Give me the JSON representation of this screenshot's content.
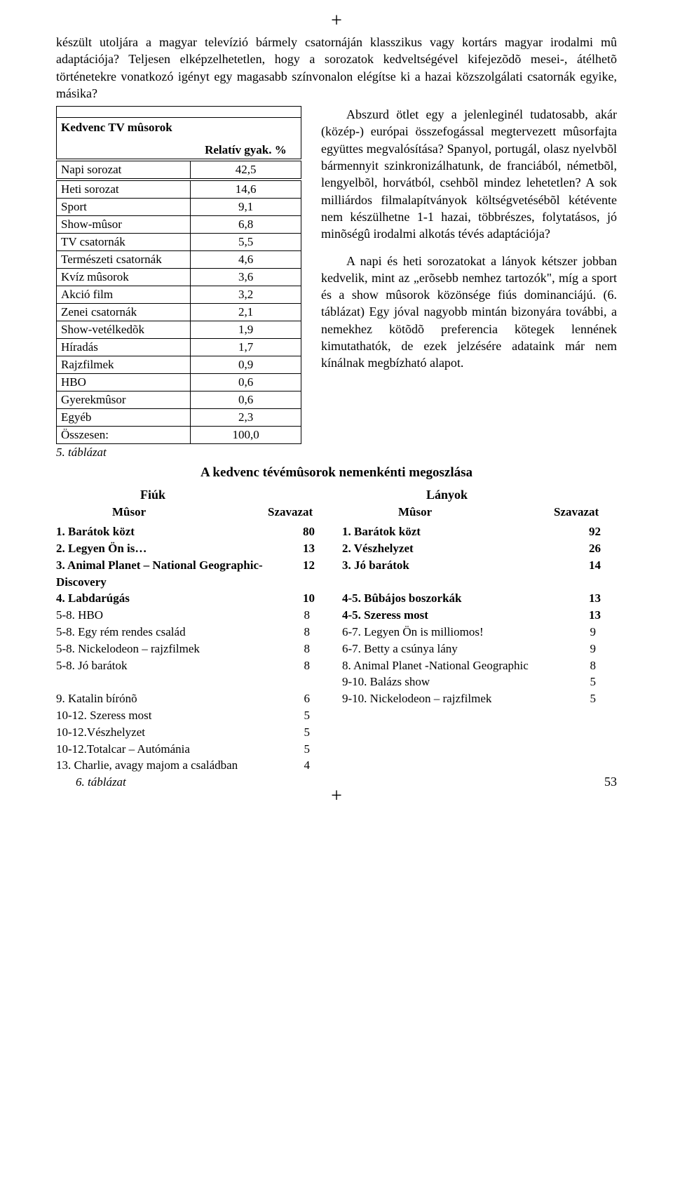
{
  "crossmark": "+",
  "paragraphs": {
    "intro": "készült utoljára a magyar televízió bármely csatornáján klasszikus vagy kortárs magyar irodalmi mû adaptációja? Teljesen elképzelhetetlen, hogy a sorozatok kedveltségével kifejezõdõ mesei-, átélhetõ történetekre vonatkozó igényt egy magasabb színvonalon elégítse ki a hazai közszolgálati csatornák egyike, másika?",
    "right1": "Abszurd ötlet egy a jelenleginél tudatosabb, akár (közép-) európai összefogással megtervezett mûsorfajta együttes megvalósítása? Spanyol, portugál, olasz nyelvbõl bármennyit szinkronizálhatunk, de franciából, németbõl, lengyelbõl, horvátból, csehbõl mindez lehetetlen? A sok milliárdos filmalapítványok költségvetésébõl kétévente nem készülhetne 1-1 hazai, többrészes, folytatásos, jó minõségû irodalmi alkotás tévés adaptációja?",
    "right2": "A napi és heti sorozatokat a lányok kétszer jobban kedvelik, mint az „erõsebb nemhez tartozók\", míg a sport és a show mûsorok közönsége fiús dominanciájú. (6. táblázat) Egy jóval nagyobb mintán bizonyára további, a nemekhez kötõdõ preferencia kötegek lennének kimutathatók, de ezek jelzésére adataink már nem kínálnak megbízható alapot."
  },
  "table5": {
    "title": "Kedvenc TV mûsorok",
    "col_header": "Relatív gyak. %",
    "rows": [
      {
        "label": "Napi sorozat",
        "value": "42,5"
      },
      {
        "label": "Heti sorozat",
        "value": "14,6"
      },
      {
        "label": "Sport",
        "value": "9,1"
      },
      {
        "label": "Show-mûsor",
        "value": "6,8"
      },
      {
        "label": "TV csatornák",
        "value": "5,5"
      },
      {
        "label": "Természeti csatornák",
        "value": "4,6"
      },
      {
        "label": "Kvíz mûsorok",
        "value": "3,6"
      },
      {
        "label": "Akció film",
        "value": "3,2"
      },
      {
        "label": "Zenei csatornák",
        "value": "2,1"
      },
      {
        "label": "Show-vetélkedõk",
        "value": "1,9"
      },
      {
        "label": "Híradás",
        "value": "1,7"
      },
      {
        "label": "Rajzfilmek",
        "value": "0,9"
      },
      {
        "label": "HBO",
        "value": "0,6"
      },
      {
        "label": "Gyerekmûsor",
        "value": "0,6"
      },
      {
        "label": "Egyéb",
        "value": "2,3"
      },
      {
        "label": "Összesen:",
        "value": "100,0"
      }
    ],
    "caption": "5. táblázat"
  },
  "section_title": "A kedvenc tévémûsorok nemenkénti megoszlása",
  "boys": {
    "head": "Fiúk",
    "show_label": "Mûsor",
    "vote_label": "Szavazat",
    "rows": [
      {
        "label": "1. Barátok közt",
        "value": "80",
        "bold": true
      },
      {
        "label": "2. Legyen Ön is…",
        "value": "13",
        "bold": true
      },
      {
        "label": "3. Animal Planet – National Geographic- Discovery",
        "value": "12",
        "bold": true
      },
      {
        "label": " 4. Labdarúgás",
        "value": "10",
        "bold": true
      },
      {
        "label": "5-8. HBO",
        "value": "8",
        "bold": false
      },
      {
        "label": "5-8. Egy rém rendes család",
        "value": "8",
        "bold": false
      },
      {
        "label": "5-8. Nickelodeon – rajzfilmek",
        "value": "8",
        "bold": false
      },
      {
        "label": "5-8. Jó barátok",
        "value": "8",
        "bold": false
      },
      {
        "label": "",
        "value": "",
        "bold": false
      },
      {
        "label": " 9. Katalin bírónõ",
        "value": "6",
        "bold": false
      },
      {
        "label": "10-12. Szeress most",
        "value": "5",
        "bold": false
      },
      {
        "label": "10-12.Vészhelyzet",
        "value": "5",
        "bold": false
      },
      {
        "label": "10-12.Totalcar – Autómánia",
        "value": "5",
        "bold": false
      },
      {
        "label": "13. Charlie, avagy majom a családban",
        "value": "4",
        "bold": false
      }
    ]
  },
  "girls": {
    "head": "Lányok",
    "show_label": "Mûsor",
    "vote_label": "Szavazat",
    "rows": [
      {
        "label": "1. Barátok közt",
        "value": "92",
        "bold": true
      },
      {
        "label": "2. Vészhelyzet",
        "value": "26",
        "bold": true
      },
      {
        "label": "3. Jó barátok",
        "value": "14",
        "bold": true
      },
      {
        "label": "",
        "value": "",
        "bold": false
      },
      {
        "label": "4-5. Bûbájos boszorkák",
        "value": "13",
        "bold": true
      },
      {
        "label": "4-5. Szeress most",
        "value": "13",
        "bold": true
      },
      {
        "label": "6-7. Legyen Ön is milliomos!",
        "value": "9",
        "bold": false
      },
      {
        "label": "6-7. Betty a csúnya lány",
        "value": "9",
        "bold": false
      },
      {
        "label": "8. Animal Planet -National Geographic",
        "value": "8",
        "bold": false
      },
      {
        "label": "9-10. Balázs show",
        "value": "5",
        "bold": false
      },
      {
        "label": "9-10. Nickelodeon – rajzfilmek",
        "value": "5",
        "bold": false
      }
    ]
  },
  "caption6": "6. táblázat",
  "page_number": "53"
}
